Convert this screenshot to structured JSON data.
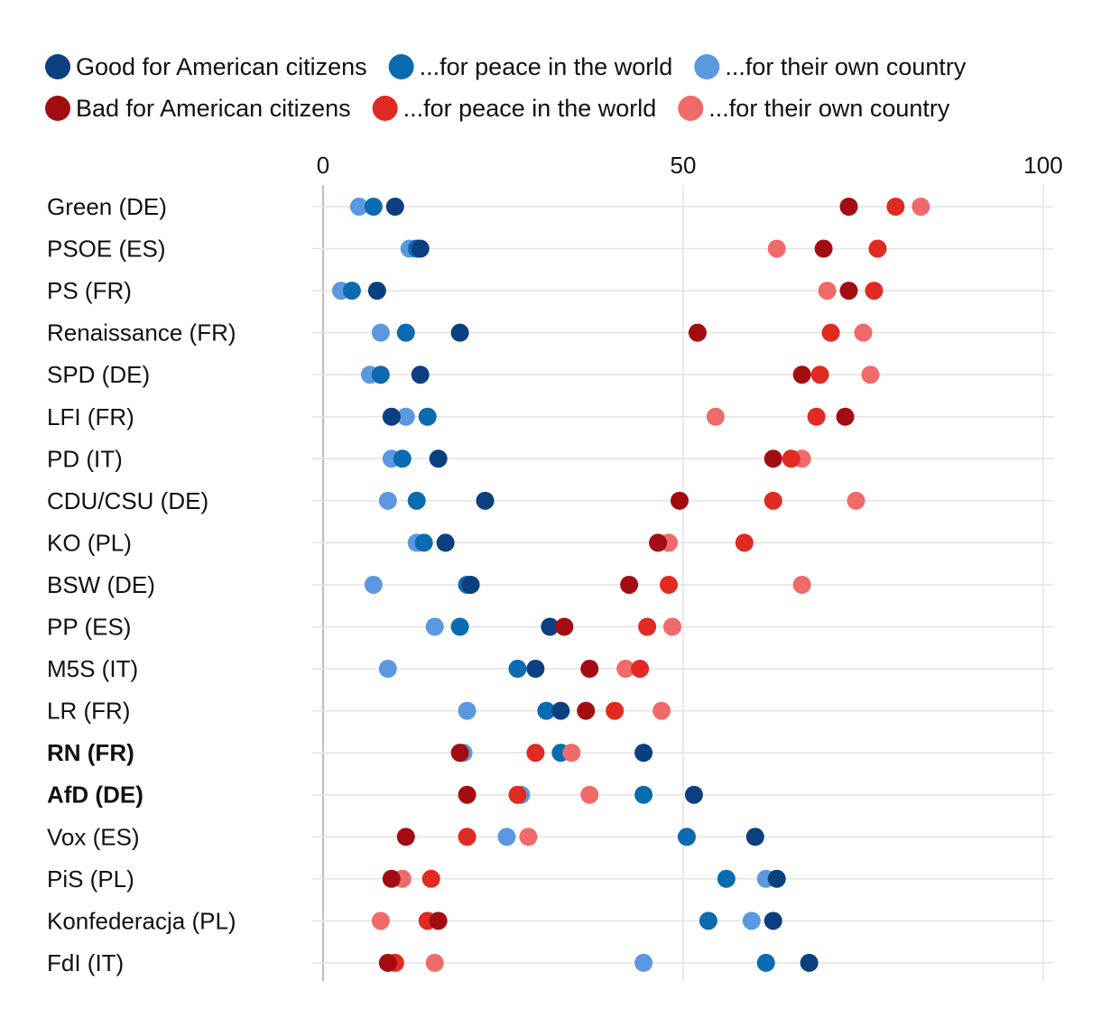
{
  "chart_data": {
    "type": "scatter",
    "title": "",
    "xlabel": "",
    "ylabel": "",
    "xlim": [
      0,
      100
    ],
    "xticks": [
      0,
      50,
      100
    ],
    "grid": true,
    "legend_position": "top-left",
    "categories": [
      "Green (DE)",
      "PSOE (ES)",
      "PS (FR)",
      "Renaissance (FR)",
      "SPD (DE)",
      "LFI (FR)",
      "PD (IT)",
      "CDU/CSU (DE)",
      "KO (PL)",
      "BSW (DE)",
      "PP (ES)",
      "M5S (IT)",
      "LR (FR)",
      "RN (FR)",
      "AfD (DE)",
      "Vox (ES)",
      "PiS (PL)",
      "Konfederacja (PL)",
      "FdI (IT)"
    ],
    "bold_categories": [
      "RN (FR)",
      "AfD (DE)"
    ],
    "draw_order": [
      "fn",
      "fp",
      "fa",
      "bn",
      "bp",
      "ba"
    ],
    "series": [
      {
        "key": "fa",
        "name": "Good for American citizens",
        "color": "#0b3f7f",
        "values": [
          10,
          13.5,
          7.5,
          19,
          13.5,
          9.5,
          16,
          22.5,
          17,
          20.5,
          31.5,
          29.5,
          33,
          44.5,
          51.5,
          60,
          63,
          62.5,
          67.5
        ]
      },
      {
        "key": "fp",
        "name": "...for peace in the world",
        "color": "#0a6bb0",
        "values": [
          7,
          13,
          4,
          11.5,
          8,
          14.5,
          11,
          13,
          14,
          20,
          19,
          27,
          31,
          33,
          44.5,
          50.5,
          56,
          53.5,
          61.5
        ]
      },
      {
        "key": "fn",
        "name": "...for their own country",
        "color": "#5b98e0",
        "values": [
          5,
          12,
          2.5,
          8,
          6.5,
          11.5,
          9.5,
          9,
          13,
          7,
          15.5,
          9,
          20,
          19.5,
          27.5,
          25.5,
          61.5,
          59.5,
          44.5
        ]
      },
      {
        "key": "ba",
        "name": "Bad for American citizens",
        "color": "#a30d12",
        "values": [
          73,
          69.5,
          73,
          52,
          66.5,
          72.5,
          62.5,
          49.5,
          46.5,
          42.5,
          33.5,
          37,
          36.5,
          19,
          20,
          11.5,
          9.5,
          16,
          9
        ]
      },
      {
        "key": "bp",
        "name": "...for peace in the world",
        "color": "#e02a22",
        "values": [
          79.5,
          77,
          76.5,
          70.5,
          69,
          68.5,
          65,
          62.5,
          58.5,
          48,
          45,
          44,
          40.5,
          29.5,
          27,
          20,
          15,
          14.5,
          10
        ]
      },
      {
        "key": "bn",
        "name": "...for their own country",
        "color": "#f06a6a",
        "values": [
          83,
          63,
          70,
          75,
          76,
          54.5,
          66.5,
          74,
          48,
          66.5,
          48.5,
          42,
          47,
          34.5,
          37,
          28.5,
          11,
          8,
          15.5
        ]
      }
    ]
  }
}
